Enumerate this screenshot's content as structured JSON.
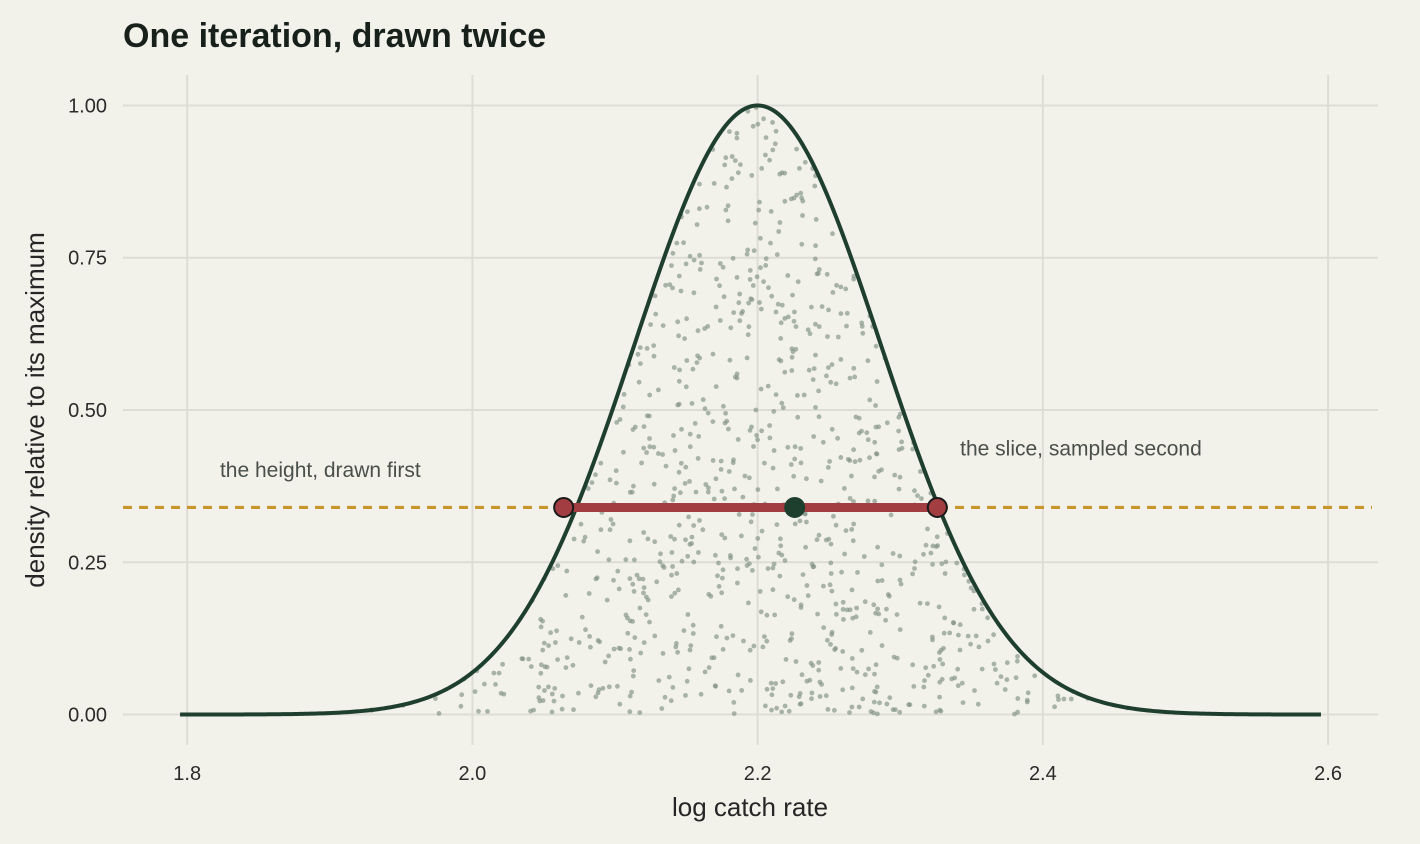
{
  "chart_data": {
    "type": "line",
    "title": "One iteration, drawn twice",
    "xlabel": "log catch rate",
    "ylabel": "density relative to its maximum",
    "xlim": [
      1.755,
      2.635
    ],
    "ylim": [
      -0.05,
      1.05
    ],
    "x_ticks": [
      1.8,
      2.0,
      2.2,
      2.4,
      2.6
    ],
    "x_tick_labels": [
      "1.8",
      "2.0",
      "2.2",
      "2.4",
      "2.6"
    ],
    "y_ticks": [
      0.0,
      0.25,
      0.5,
      0.75,
      1.0
    ],
    "y_tick_labels": [
      "0.00",
      "0.25",
      "0.50",
      "0.75",
      "1.00"
    ],
    "grid": true,
    "density_curve": {
      "mean": 2.2,
      "sd": 0.0865,
      "x_range": [
        1.795,
        2.595
      ],
      "color": "#1f3f2e"
    },
    "slice_height": 0.34,
    "slice_bounds": [
      2.064,
      2.326
    ],
    "sampled_point": {
      "x": 2.226,
      "y": 0.34
    },
    "scatter": {
      "description_count": 900,
      "color": "#7f9282"
    },
    "colors": {
      "background": "#f2f1ea",
      "curve": "#1f3f2e",
      "slice_line": "#a23e41",
      "height_line": "#c9962e",
      "sampled_point": "#1f3f2e",
      "points": "#7f9282"
    },
    "annotations": [
      {
        "text": "the height, drawn first",
        "x": 1.823,
        "y": 0.39,
        "anchor": "start"
      },
      {
        "text": "the slice, sampled second",
        "x": 2.342,
        "y": 0.425,
        "anchor": "start"
      }
    ]
  }
}
